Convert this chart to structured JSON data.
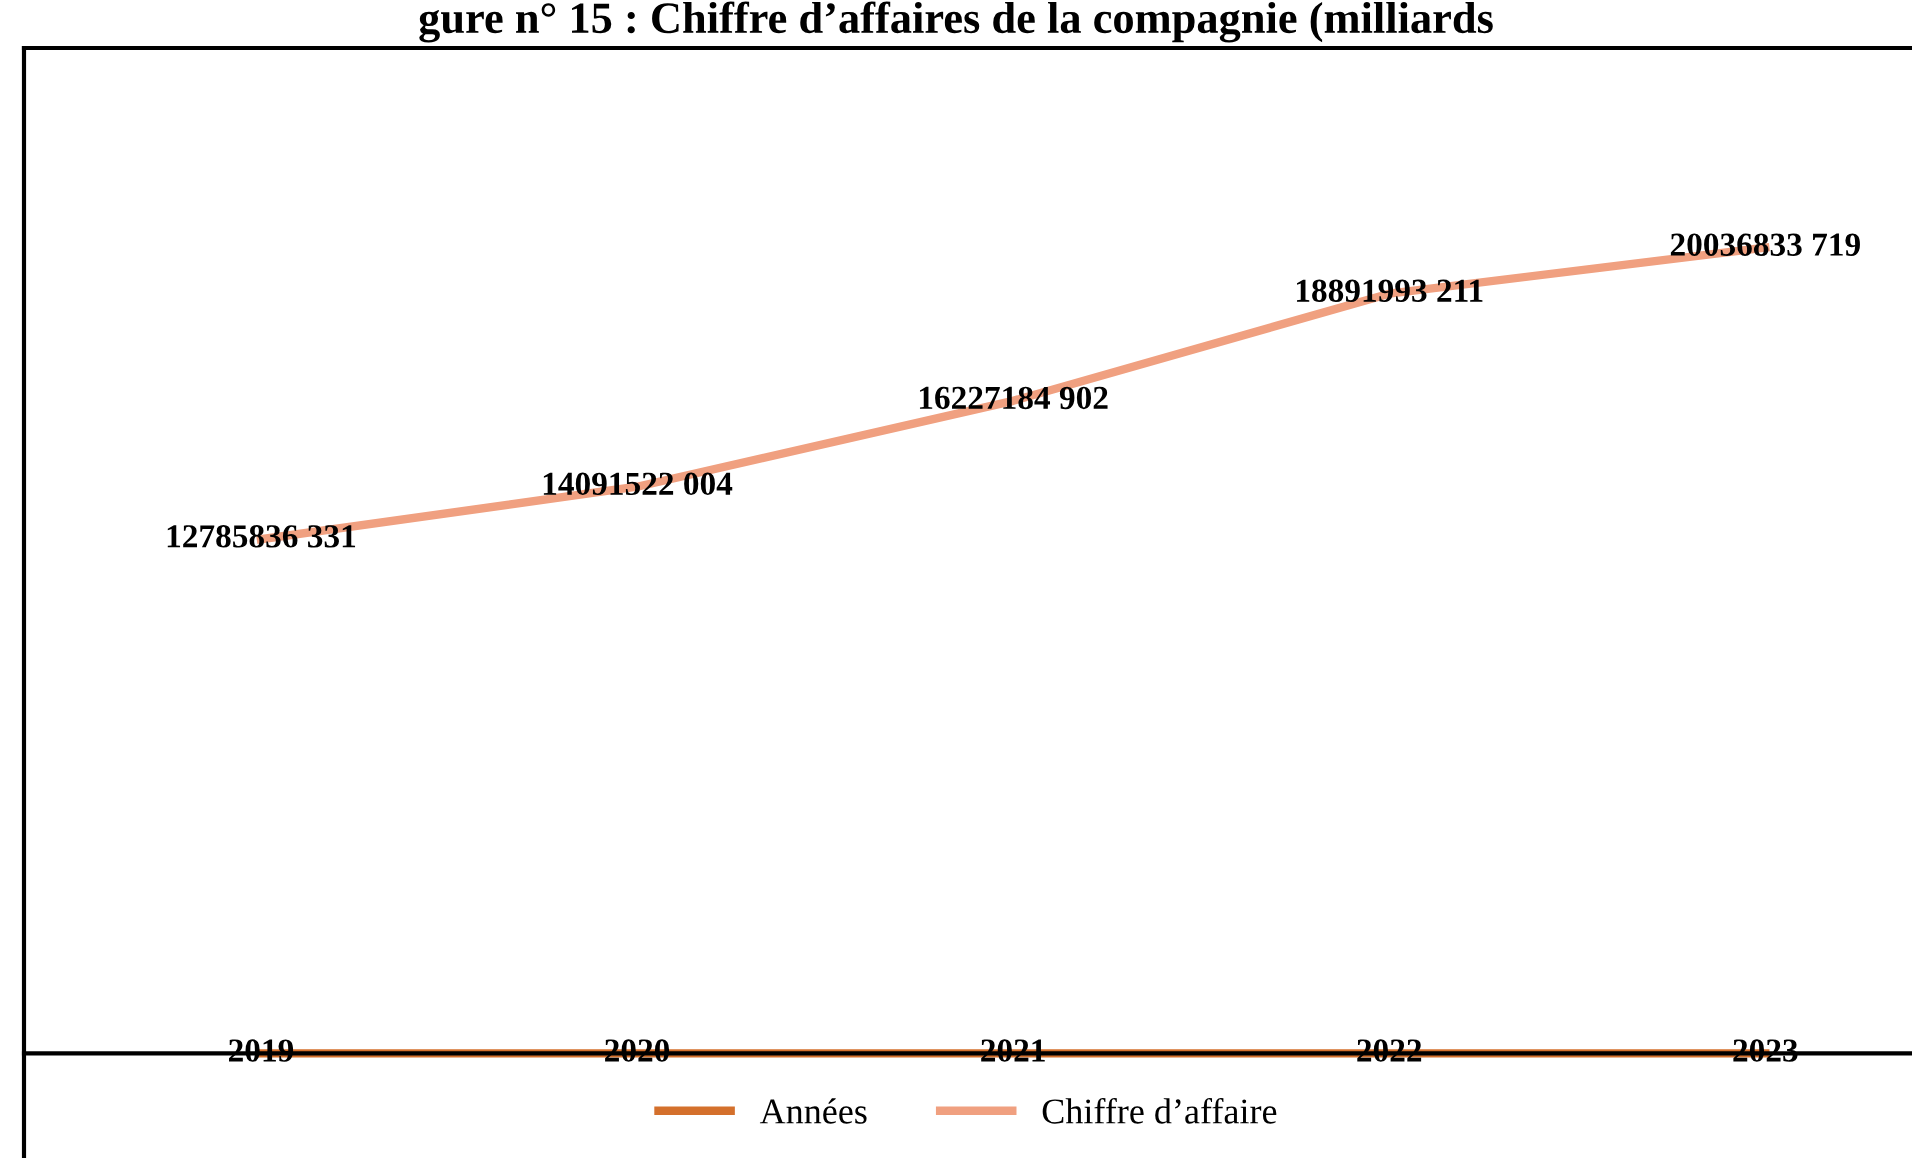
{
  "chart_data": {
    "type": "line",
    "title": "gure n° 15 : Chiffre d’affaires de la compagnie (milliards",
    "categories": [
      null,
      null,
      null,
      null,
      null
    ],
    "series": [
      {
        "name": "Années",
        "color": "#d4702c",
        "values": [
          2019,
          2020,
          2021,
          2022,
          2023
        ],
        "value_labels": [
          "2019",
          "2020",
          "2021",
          "2022",
          "2023"
        ]
      },
      {
        "name": "Chiffre d’affaire",
        "color": "#f0a080",
        "values": [
          12785836331,
          14091522004,
          16227184902,
          18891993211,
          20036833719
        ],
        "value_labels": [
          "12785836 331",
          "14091522 004",
          "16227184 902",
          "18891993 211",
          "20036833 719"
        ]
      }
    ],
    "ylim": [
      -2600000000,
      25000000000
    ],
    "legend": "bottom",
    "marker": "none",
    "line_style": "solid"
  }
}
